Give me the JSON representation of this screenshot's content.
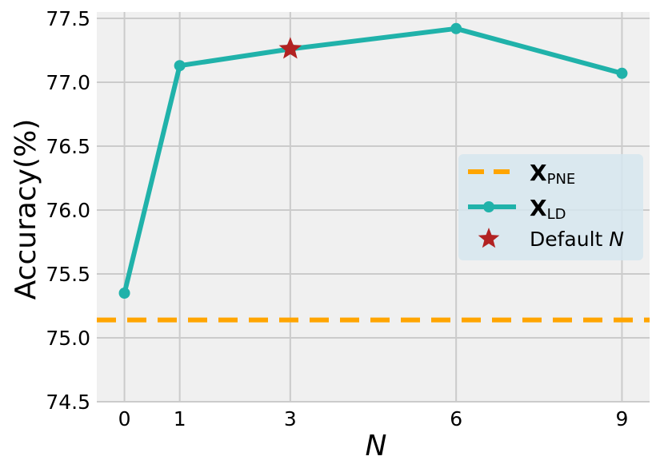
{
  "chart_data": {
    "type": "line",
    "title": "",
    "xlabel": "N",
    "ylabel": "Accuracy(%)",
    "x_ticks": [
      0,
      1,
      3,
      6,
      9
    ],
    "y_ticks": [
      74.5,
      75.0,
      75.5,
      76.0,
      76.5,
      77.0,
      77.5
    ],
    "y_tick_labels": [
      "74.5",
      "75.0",
      "75.5",
      "76.0",
      "76.5",
      "77.0",
      "77.5"
    ],
    "xlim": [
      -0.5,
      9.5
    ],
    "ylim": [
      74.5,
      77.55
    ],
    "grid": true,
    "legend_position": "center-right",
    "series": [
      {
        "name": "X_PNE",
        "legend_main": "X",
        "legend_sub": "PNE",
        "style": "dashed-hline",
        "color": "#FFA500",
        "y": 75.14
      },
      {
        "name": "X_LD",
        "legend_main": "X",
        "legend_sub": "LD",
        "style": "line-marker",
        "color": "#20B2AA",
        "x": [
          0,
          1,
          3,
          6,
          9
        ],
        "y": [
          75.35,
          77.13,
          77.26,
          77.42,
          77.07
        ]
      },
      {
        "name": "Default N",
        "legend_main": "Default ",
        "legend_italic": "N",
        "style": "star",
        "color": "#B22222",
        "x": [
          3
        ],
        "y": [
          77.26
        ]
      }
    ]
  }
}
